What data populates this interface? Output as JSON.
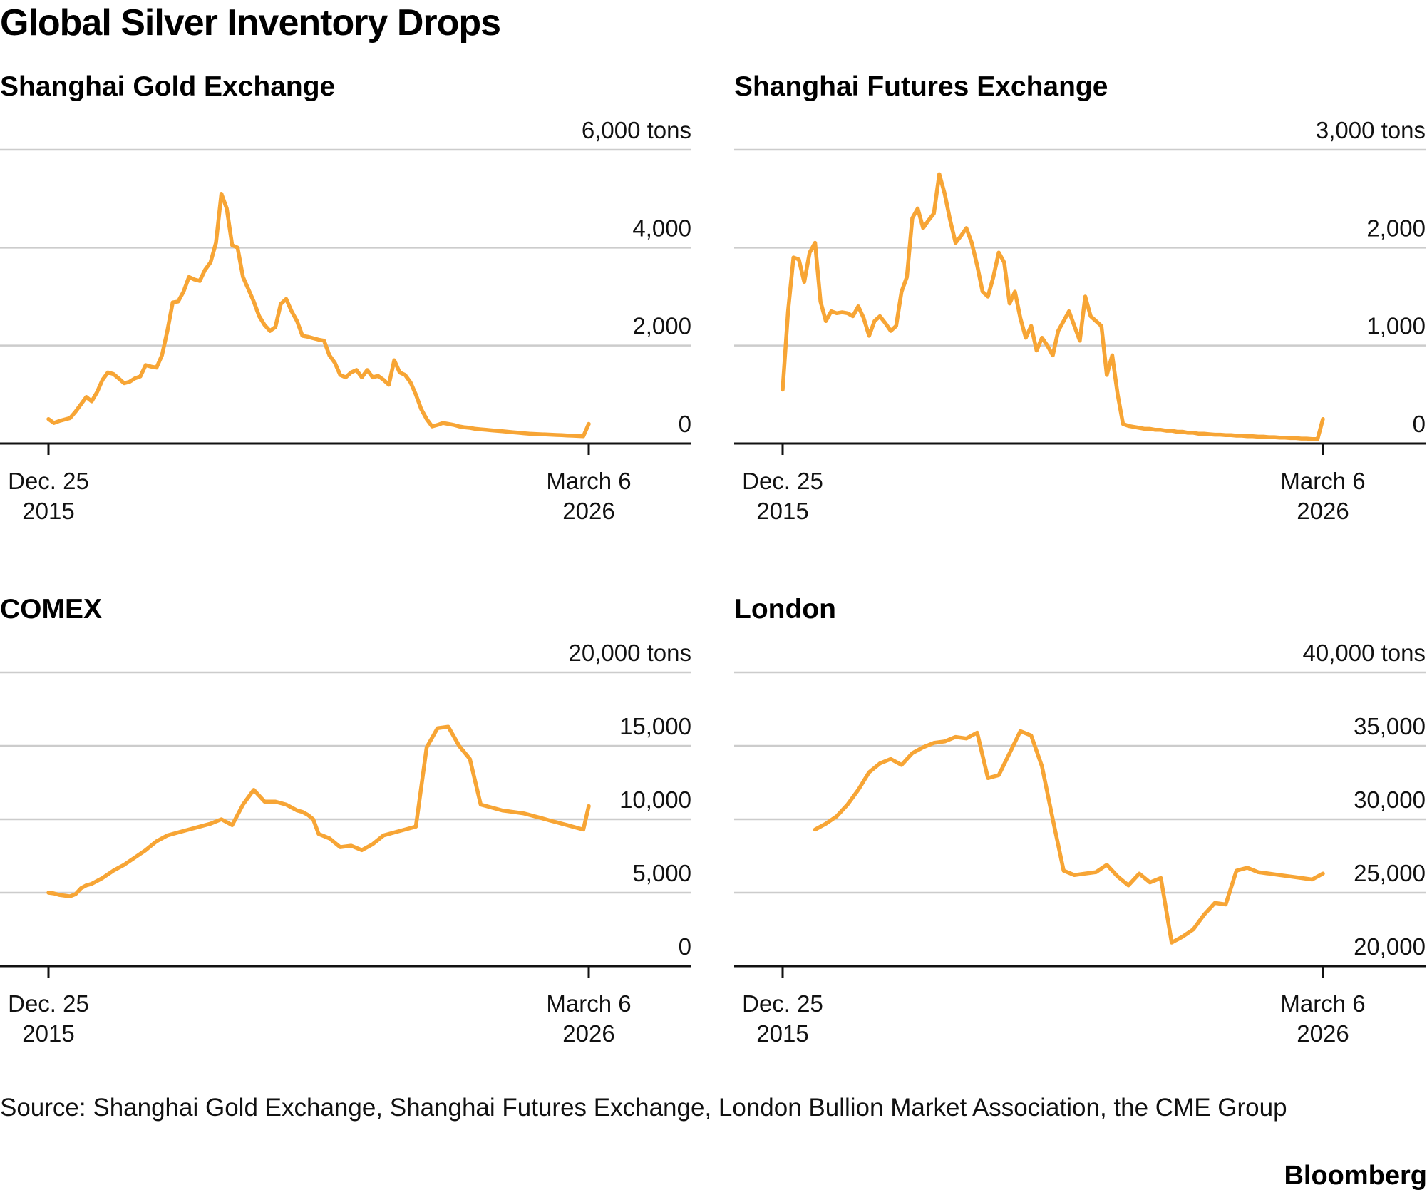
{
  "title": "Global Silver Inventory Drops",
  "source": "Source: Shanghai Gold Exchange, Shanghai Futures Exchange, London Bullion Market Association, the CME Group",
  "brand": "Bloomberg",
  "colors": {
    "line": "#F7A535",
    "grid": "#CCCCCC",
    "axis": "#111111"
  },
  "chart_data": [
    {
      "type": "line",
      "title": "Shanghai Gold Exchange",
      "unit": "tons",
      "ylim": [
        0,
        6000
      ],
      "yticks": [
        0,
        2000,
        4000,
        6000
      ],
      "ytick_labels": [
        "0",
        "2,000",
        "4,000",
        "6,000 tons"
      ],
      "xlim": [
        0,
        100
      ],
      "xtick_labels": [
        [
          "Dec. 25",
          "2015"
        ],
        [
          "March 6",
          "2026"
        ]
      ],
      "x": [
        0,
        1,
        2,
        4,
        5,
        6,
        7,
        8,
        9,
        10,
        11,
        12,
        13,
        14,
        15,
        16,
        17,
        18,
        19,
        20,
        21,
        22,
        23,
        24,
        25,
        26,
        27,
        28,
        29,
        30,
        31,
        32,
        33,
        34,
        35,
        36,
        37,
        38,
        39,
        40,
        41,
        42,
        43,
        44,
        45,
        46,
        47,
        48,
        49,
        50,
        51,
        52,
        53,
        54,
        55,
        56,
        57,
        58,
        59,
        60,
        61,
        62,
        63,
        64,
        65,
        66,
        67,
        68,
        69,
        70,
        71,
        72,
        73,
        74,
        75,
        76,
        77,
        78,
        79,
        80,
        81,
        82,
        83,
        84,
        85,
        86,
        87,
        88,
        89,
        90,
        91,
        92,
        93,
        94,
        95,
        96,
        97,
        98,
        99,
        100
      ],
      "values": [
        500,
        420,
        460,
        520,
        650,
        800,
        950,
        860,
        1050,
        1300,
        1450,
        1420,
        1330,
        1230,
        1260,
        1330,
        1370,
        1600,
        1570,
        1550,
        1800,
        2300,
        2880,
        2900,
        3100,
        3400,
        3350,
        3320,
        3550,
        3700,
        4100,
        5100,
        4800,
        4050,
        4000,
        3400,
        3150,
        2900,
        2600,
        2420,
        2300,
        2380,
        2850,
        2950,
        2700,
        2500,
        2200,
        2180,
        2150,
        2120,
        2100,
        1800,
        1650,
        1400,
        1350,
        1450,
        1500,
        1350,
        1500,
        1350,
        1380,
        1300,
        1200,
        1700,
        1450,
        1400,
        1250,
        1000,
        700,
        500,
        350,
        380,
        420,
        400,
        380,
        350,
        330,
        320,
        300,
        290,
        280,
        270,
        260,
        250,
        240,
        230,
        220,
        210,
        200,
        195,
        190,
        185,
        180,
        175,
        170,
        165,
        160,
        155,
        150,
        400
      ]
    },
    {
      "type": "line",
      "title": "Shanghai Futures Exchange",
      "unit": "tons",
      "ylim": [
        0,
        3000
      ],
      "yticks": [
        0,
        1000,
        2000,
        3000
      ],
      "ytick_labels": [
        "0",
        "1,000",
        "2,000",
        "3,000 tons"
      ],
      "xlim": [
        0,
        100
      ],
      "xtick_labels": [
        [
          "Dec. 25",
          "2015"
        ],
        [
          "March 6",
          "2026"
        ]
      ],
      "x": [
        0,
        1,
        2,
        3,
        4,
        5,
        6,
        7,
        8,
        9,
        10,
        11,
        12,
        13,
        14,
        15,
        16,
        17,
        18,
        19,
        20,
        21,
        22,
        23,
        24,
        25,
        26,
        27,
        28,
        29,
        30,
        31,
        32,
        33,
        34,
        35,
        36,
        37,
        38,
        39,
        40,
        41,
        42,
        43,
        44,
        45,
        46,
        47,
        48,
        49,
        50,
        51,
        52,
        53,
        54,
        55,
        56,
        57,
        58,
        59,
        60,
        61,
        62,
        63,
        64,
        65,
        66,
        67,
        68,
        69,
        70,
        71,
        72,
        73,
        74,
        75,
        76,
        77,
        78,
        79,
        80,
        81,
        82,
        83,
        84,
        85,
        86,
        87,
        88,
        89,
        90,
        91,
        92,
        93,
        94,
        95,
        96,
        97,
        98,
        99,
        100
      ],
      "values": [
        550,
        1350,
        1900,
        1880,
        1650,
        1950,
        2050,
        1450,
        1250,
        1350,
        1330,
        1340,
        1330,
        1300,
        1400,
        1280,
        1100,
        1250,
        1300,
        1230,
        1150,
        1200,
        1550,
        1700,
        2300,
        2400,
        2200,
        2280,
        2350,
        2750,
        2550,
        2280,
        2050,
        2120,
        2200,
        2050,
        1820,
        1550,
        1500,
        1700,
        1950,
        1850,
        1430,
        1550,
        1280,
        1080,
        1200,
        950,
        1080,
        1000,
        900,
        1150,
        1250,
        1350,
        1200,
        1050,
        1500,
        1300,
        1250,
        1200,
        700,
        900,
        500,
        200,
        180,
        170,
        160,
        150,
        150,
        140,
        140,
        130,
        130,
        120,
        120,
        110,
        110,
        100,
        100,
        95,
        90,
        90,
        85,
        85,
        80,
        80,
        75,
        75,
        70,
        70,
        65,
        65,
        60,
        60,
        55,
        55,
        50,
        50,
        45,
        45,
        250
      ]
    },
    {
      "type": "line",
      "title": "COMEX",
      "unit": "tons",
      "ylim": [
        0,
        20000
      ],
      "yticks": [
        0,
        5000,
        10000,
        15000,
        20000
      ],
      "ytick_labels": [
        "0",
        "5,000",
        "10,000",
        "15,000",
        "20,000 tons"
      ],
      "xlim": [
        0,
        100
      ],
      "xtick_labels": [
        [
          "Dec. 25",
          "2015"
        ],
        [
          "March 6",
          "2026"
        ]
      ],
      "x": [
        0,
        1,
        2,
        3,
        4,
        5,
        6,
        7,
        8,
        10,
        12,
        14,
        16,
        18,
        20,
        22,
        24,
        26,
        28,
        30,
        32,
        34,
        36,
        38,
        40,
        42,
        44,
        46,
        47,
        48,
        49,
        50,
        52,
        54,
        56,
        58,
        60,
        62,
        64,
        66,
        68,
        70,
        72,
        74,
        76,
        78,
        80,
        82,
        84,
        86,
        88,
        89,
        90,
        91,
        92,
        93,
        94,
        95,
        96,
        97,
        98,
        99,
        100
      ],
      "values": [
        5000,
        4950,
        4850,
        4800,
        4750,
        4900,
        5300,
        5500,
        5600,
        6000,
        6500,
        6900,
        7400,
        7900,
        8500,
        8900,
        9100,
        9300,
        9500,
        9700,
        10000,
        9600,
        11000,
        12000,
        11200,
        11200,
        11000,
        10600,
        10500,
        10300,
        10000,
        9000,
        8700,
        8100,
        8200,
        7900,
        8300,
        8900,
        9100,
        9300,
        9500,
        14900,
        16200,
        16300,
        15000,
        14100,
        11000,
        10800,
        10600,
        10500,
        10400,
        10300,
        10200,
        10100,
        10000,
        9900,
        9800,
        9700,
        9600,
        9500,
        9400,
        9300,
        10900
      ]
    },
    {
      "type": "line",
      "title": "London",
      "unit": "tons",
      "ylim": [
        20000,
        40000
      ],
      "yticks": [
        20000,
        25000,
        30000,
        35000,
        40000
      ],
      "ytick_labels": [
        "20,000",
        "25,000",
        "30,000",
        "35,000",
        "40,000 tons"
      ],
      "xlim": [
        0,
        100
      ],
      "xtick_labels": [
        [
          "Dec. 25",
          "2015"
        ],
        [
          "March 6",
          "2026"
        ]
      ],
      "x": [
        6,
        8,
        10,
        12,
        14,
        16,
        18,
        20,
        22,
        24,
        26,
        28,
        30,
        32,
        34,
        36,
        38,
        40,
        42,
        44,
        46,
        48,
        50,
        52,
        54,
        56,
        58,
        60,
        62,
        64,
        66,
        68,
        70,
        72,
        74,
        76,
        78,
        80,
        82,
        84,
        86,
        88,
        90,
        92,
        94,
        96,
        98,
        100
      ],
      "values": [
        29300,
        29700,
        30200,
        31000,
        32000,
        33200,
        33800,
        34100,
        33700,
        34500,
        34900,
        35200,
        35300,
        35600,
        35500,
        35900,
        32800,
        33000,
        34500,
        36000,
        35700,
        33600,
        30000,
        26500,
        26200,
        26300,
        26400,
        26900,
        26100,
        25500,
        26300,
        25700,
        26000,
        21600,
        22000,
        22500,
        23500,
        24300,
        24200,
        26500,
        26700,
        26400,
        26300,
        26200,
        26100,
        26000,
        25900,
        26300
      ]
    }
  ]
}
